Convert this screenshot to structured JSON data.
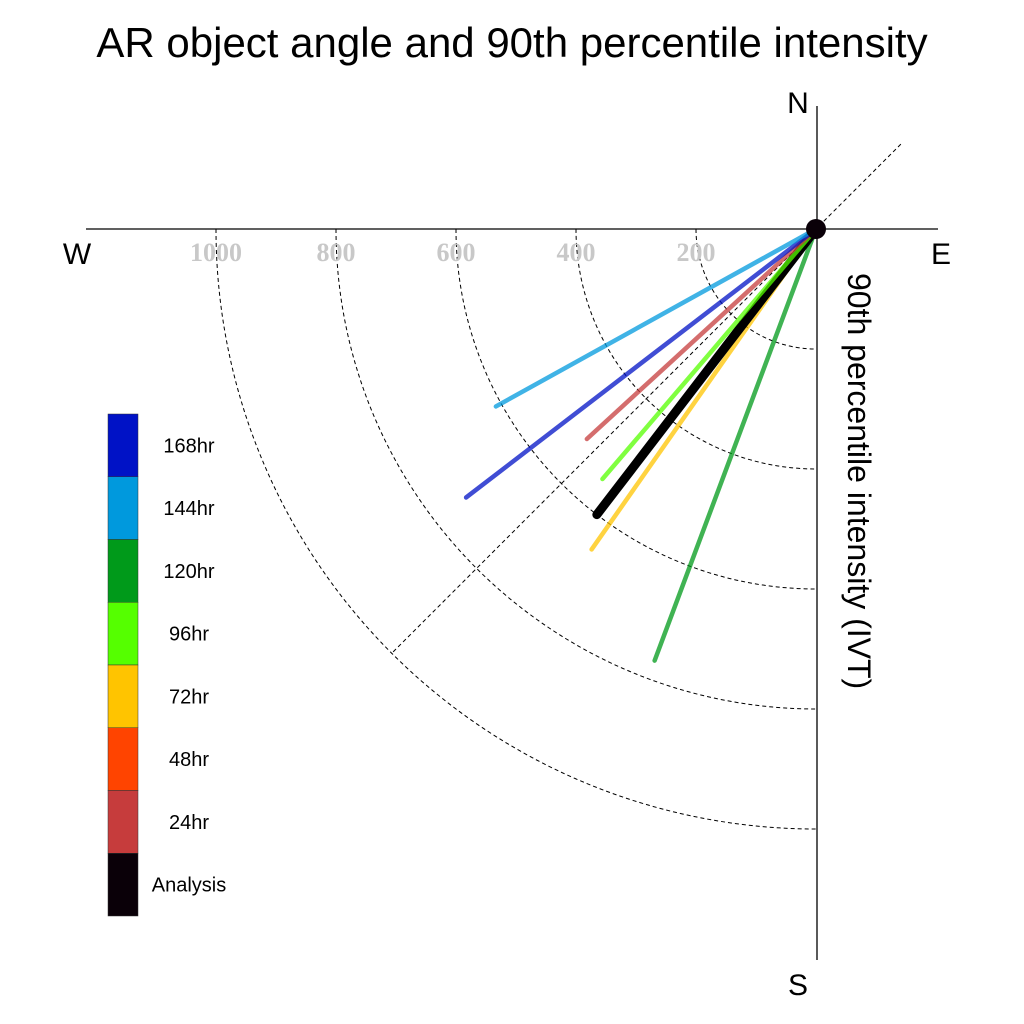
{
  "chart_data": {
    "type": "polar-lines",
    "title": "AR object angle and 90th percentile intensity",
    "radial_label": "90th percentile intensity (IVT)",
    "directions": {
      "n": "N",
      "s": "S",
      "e": "E",
      "w": "W"
    },
    "rings": [
      200,
      400,
      600,
      800,
      1000
    ],
    "ring_labels": [
      "1000",
      "800",
      "600",
      "400",
      "200"
    ],
    "rmax": 1000,
    "series": [
      {
        "name": "120hr",
        "color": "#009a1a",
        "angle_deg": 200.5,
        "intensity": 768
      },
      {
        "name": "72hr",
        "color": "#ffc400",
        "angle_deg": 215.0,
        "intensity": 652
      },
      {
        "name": "Analysis",
        "color": "#000000",
        "angle_deg": 217.5,
        "intensity": 600
      },
      {
        "name": "96hr",
        "color": "#55ff00",
        "angle_deg": 220.5,
        "intensity": 548
      },
      {
        "name": "24hr",
        "color": "#c63c3c",
        "angle_deg": 227.5,
        "intensity": 518
      },
      {
        "name": "168hr",
        "color": "#0012c6",
        "angle_deg": 232.5,
        "intensity": 735
      },
      {
        "name": "144hr",
        "color": "#0099dd",
        "angle_deg": 241.0,
        "intensity": 610
      }
    ],
    "legend": [
      {
        "label": "168hr",
        "color": "#0012c6"
      },
      {
        "label": "144hr",
        "color": "#0099dd"
      },
      {
        "label": "120hr",
        "color": "#009a1a"
      },
      {
        "label": "96hr",
        "color": "#55ff00"
      },
      {
        "label": "72hr",
        "color": "#ffc400"
      },
      {
        "label": "48hr",
        "color": "#ff4400"
      },
      {
        "label": "24hr",
        "color": "#c63c3c"
      },
      {
        "label": "Analysis",
        "color": "#0a0008"
      }
    ],
    "legend_placement": "left",
    "grid": true
  }
}
